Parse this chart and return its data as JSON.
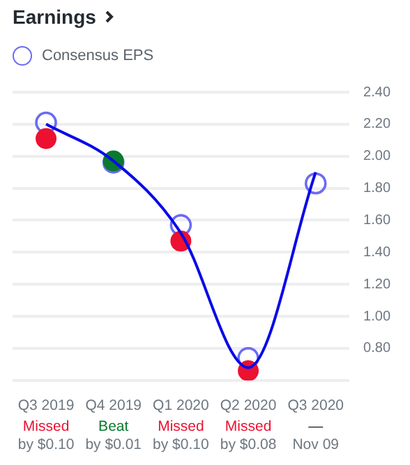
{
  "chart_data": {
    "type": "scatter",
    "title": "Earnings",
    "categories": [
      "Q3 2019",
      "Q4 2019",
      "Q1 2020",
      "Q2 2020",
      "Q3 2020"
    ],
    "series": [
      {
        "name": "Consensus EPS",
        "marker": "circle",
        "color": "#6b6bf5",
        "values": [
          2.21,
          1.96,
          1.57,
          0.74,
          1.83
        ]
      },
      {
        "marker": "circle",
        "colors": [
          "#ec1131",
          "#0a7a30",
          "#ec1131",
          "#ec1131",
          null
        ],
        "values": [
          2.11,
          1.97,
          1.47,
          0.66,
          null
        ]
      },
      {
        "type": "line",
        "color": "#0a0ae8",
        "values": [
          2.2,
          1.97,
          1.52,
          0.68,
          1.9
        ]
      }
    ],
    "ylim": [
      0.6,
      2.4
    ],
    "yticks": [
      {
        "value": 0.6,
        "label": null
      },
      {
        "value": 0.8,
        "label": "0.80"
      },
      {
        "value": 1.0,
        "label": "1.00"
      },
      {
        "value": 1.2,
        "label": "1.20"
      },
      {
        "value": 1.4,
        "label": "1.40"
      },
      {
        "value": 1.6,
        "label": "1.60"
      },
      {
        "value": 1.8,
        "label": "1.80"
      },
      {
        "value": 2.0,
        "label": "2.00"
      },
      {
        "value": 2.2,
        "label": "2.20"
      },
      {
        "value": 2.4,
        "label": "2.40"
      }
    ],
    "grid": "y",
    "legend": "top left",
    "annotations": [
      "Missed",
      "by $0.10",
      "Beat",
      "by $0.01",
      "Missed",
      "by $0.10",
      "Missed",
      "by $0.08",
      "—",
      "Nov 09"
    ]
  }
}
